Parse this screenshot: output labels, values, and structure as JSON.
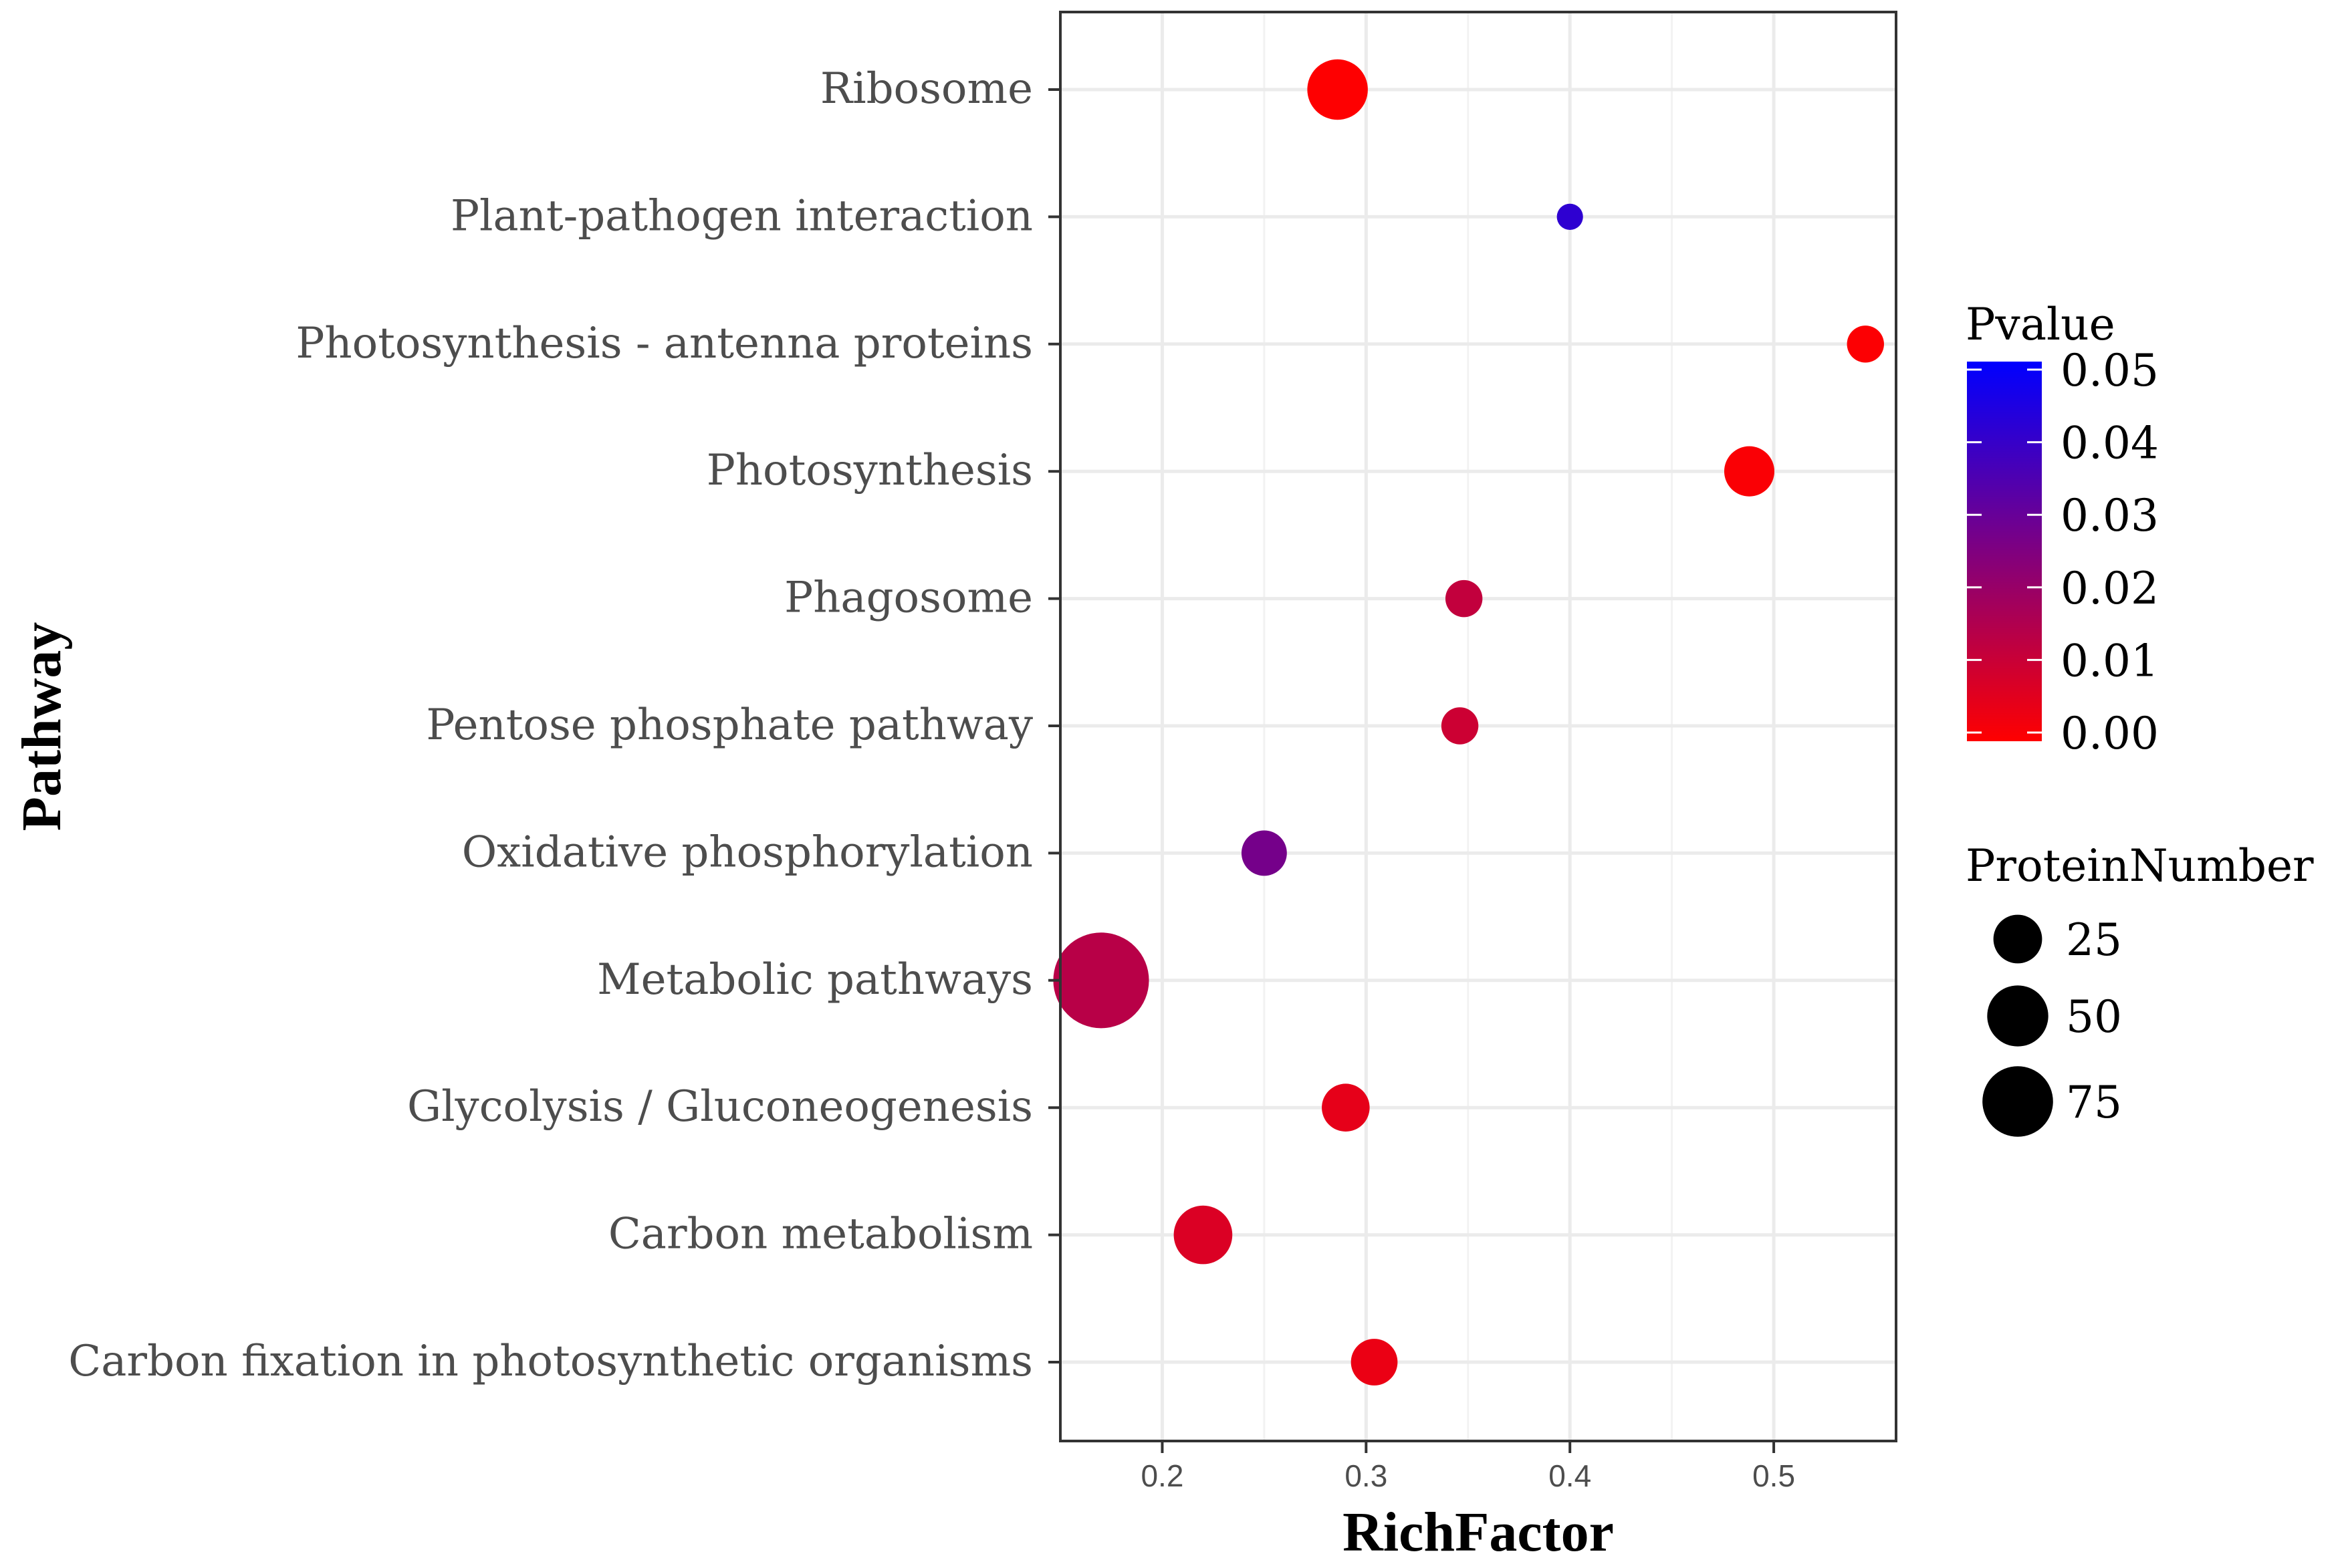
{
  "chart_data": {
    "type": "scatter",
    "xlabel": "RichFactor",
    "ylabel": "Pathway",
    "xlim": [
      0.15,
      0.56
    ],
    "x_ticks": [
      0.2,
      0.3,
      0.4,
      0.5
    ],
    "x_tick_labels": [
      "0.2",
      "0.3",
      "0.4",
      "0.5"
    ],
    "grid": true,
    "categories": [
      "Ribosome",
      "Plant-pathogen interaction",
      "Photosynthesis - antenna proteins",
      "Photosynthesis",
      "Phagosome",
      "Pentose phosphate pathway",
      "Oxidative phosphorylation",
      "Metabolic pathways",
      "Glycolysis / Gluconeogenesis",
      "Carbon metabolism",
      "Carbon fixation in photosynthetic organisms"
    ],
    "points": [
      {
        "pathway": "Ribosome",
        "rich_factor": 0.286,
        "pvalue": 0.0001,
        "protein_number": 32
      },
      {
        "pathway": "Plant-pathogen interaction",
        "rich_factor": 0.4,
        "pvalue": 0.041,
        "protein_number": 6
      },
      {
        "pathway": "Photosynthesis - antenna proteins",
        "rich_factor": 0.545,
        "pvalue": 0.0005,
        "protein_number": 12
      },
      {
        "pathway": "Photosynthesis",
        "rich_factor": 0.488,
        "pvalue": 0.001,
        "protein_number": 22
      },
      {
        "pathway": "Phagosome",
        "rich_factor": 0.348,
        "pvalue": 0.012,
        "protein_number": 12
      },
      {
        "pathway": "Pentose phosphate pathway",
        "rich_factor": 0.346,
        "pvalue": 0.01,
        "protein_number": 12
      },
      {
        "pathway": "Oxidative phosphorylation",
        "rich_factor": 0.25,
        "pvalue": 0.027,
        "protein_number": 18
      },
      {
        "pathway": "Metabolic pathways",
        "rich_factor": 0.17,
        "pvalue": 0.014,
        "protein_number": 80
      },
      {
        "pathway": "Glycolysis / Gluconeogenesis",
        "rich_factor": 0.29,
        "pvalue": 0.005,
        "protein_number": 20
      },
      {
        "pathway": "Carbon metabolism",
        "rich_factor": 0.22,
        "pvalue": 0.007,
        "protein_number": 30
      },
      {
        "pathway": "Carbon fixation in photosynthetic organisms",
        "rich_factor": 0.304,
        "pvalue": 0.004,
        "protein_number": 19
      }
    ],
    "color_legend": {
      "title": "Pvalue",
      "low_color": "#ff0000",
      "high_color": "#0000ff",
      "range": [
        0.0,
        0.05
      ],
      "labels": [
        "0.05",
        "0.04",
        "0.03",
        "0.02",
        "0.01",
        "0.00"
      ]
    },
    "size_legend": {
      "title": "ProteinNumber",
      "values": [
        25,
        50,
        75
      ],
      "labels": [
        "25",
        "50",
        "75"
      ],
      "marker_color": "#000000"
    }
  }
}
